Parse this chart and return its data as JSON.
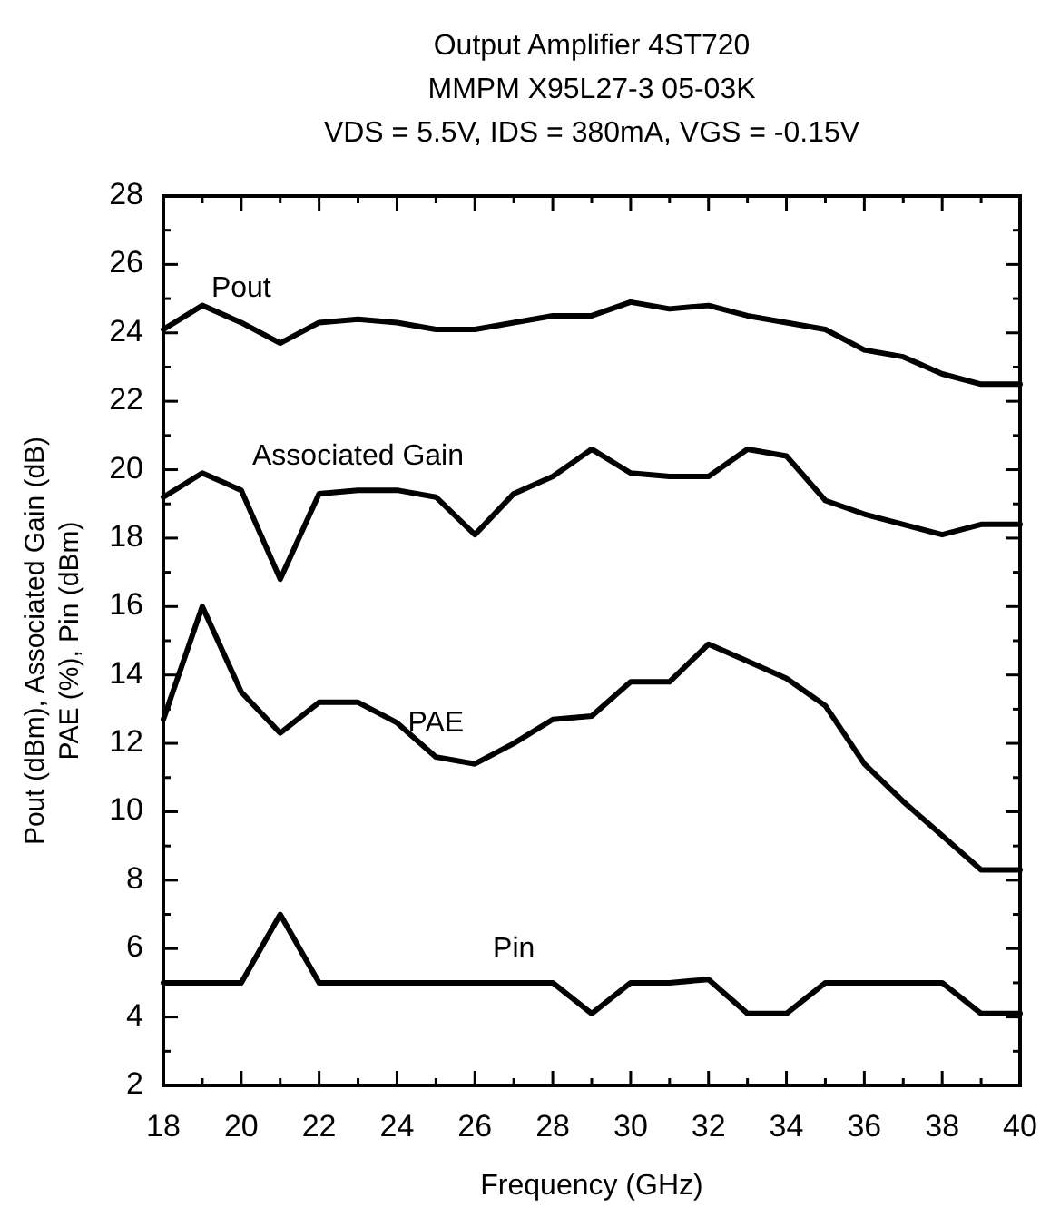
{
  "chart_data": {
    "type": "line",
    "title": "Output Amplifier 4ST720",
    "subtitle": "MMPM X95L27-3  05-03K\nVDS = 5.5V, IDS = 380mA, VGS = -0.15V",
    "xlabel": "Frequency (GHz)",
    "ylabel": "Pout (dBm), Associated Gain (dB)\nPAE (%), Pin (dBm)",
    "x": [
      18,
      19,
      20,
      21,
      22,
      23,
      24,
      25,
      26,
      27,
      28,
      29,
      30,
      31,
      32,
      33,
      34,
      35,
      36,
      37,
      38,
      39,
      40
    ],
    "series": [
      {
        "name": "Pout",
        "color": "#000000",
        "values": [
          24.1,
          24.8,
          24.3,
          23.7,
          24.3,
          24.4,
          24.3,
          24.1,
          24.1,
          24.3,
          24.5,
          24.5,
          24.9,
          24.7,
          24.8,
          24.5,
          24.3,
          24.1,
          23.5,
          23.3,
          22.8,
          22.5,
          22.5
        ]
      },
      {
        "name": "Associated Gain",
        "color": "#000000",
        "values": [
          19.2,
          19.9,
          19.4,
          16.8,
          19.3,
          19.4,
          19.4,
          19.2,
          18.1,
          19.3,
          19.8,
          20.6,
          19.9,
          19.8,
          19.8,
          20.6,
          20.4,
          19.1,
          18.7,
          18.4,
          18.1,
          18.4,
          18.4
        ]
      },
      {
        "name": "PAE",
        "color": "#000000",
        "values": [
          12.7,
          16.0,
          13.5,
          12.3,
          13.2,
          13.2,
          12.6,
          11.6,
          11.4,
          12.0,
          12.7,
          12.8,
          13.8,
          13.8,
          14.9,
          14.4,
          13.9,
          13.1,
          11.4,
          10.3,
          9.3,
          8.3,
          8.3
        ]
      },
      {
        "name": "Pin",
        "color": "#000000",
        "values": [
          5,
          5,
          5,
          7,
          5,
          5,
          5,
          5,
          5,
          5,
          5,
          4.1,
          5,
          5,
          5.1,
          4.1,
          4.1,
          5,
          5,
          5,
          5,
          4.1,
          4.1
        ]
      }
    ],
    "xlim": [
      18,
      40
    ],
    "ylim": [
      2,
      28
    ],
    "xticks": [
      18,
      {
        "value": 19,
        "label": null
      },
      20,
      {
        "value": 21,
        "label": null
      },
      22,
      {
        "value": 23,
        "label": null
      },
      24,
      {
        "value": 25,
        "label": null
      },
      26,
      {
        "value": 27,
        "label": null
      },
      28,
      {
        "value": 29,
        "label": null
      },
      30,
      {
        "value": 31,
        "label": null
      },
      32,
      {
        "value": 33,
        "label": null
      },
      34,
      {
        "value": 35,
        "label": null
      },
      36,
      {
        "value": 37,
        "label": null
      },
      38,
      {
        "value": 39,
        "label": null
      },
      40
    ],
    "yticks": [
      2,
      {
        "value": 3,
        "label": null
      },
      4,
      {
        "value": 5,
        "label": null
      },
      6,
      {
        "value": 7,
        "label": null
      },
      8,
      {
        "value": 9,
        "label": null
      },
      10,
      {
        "value": 11,
        "label": null
      },
      12,
      {
        "value": 13,
        "label": null
      },
      14,
      {
        "value": 15,
        "label": null
      },
      16,
      {
        "value": 17,
        "label": null
      },
      18,
      {
        "value": 19,
        "label": null
      },
      20,
      {
        "value": 21,
        "label": null
      },
      22,
      {
        "value": 23,
        "label": null
      },
      24,
      {
        "value": 25,
        "label": null
      },
      26,
      {
        "value": 27,
        "label": null
      },
      28
    ],
    "grid": false,
    "legend": false,
    "marker": "none",
    "line_style": "solid"
  }
}
